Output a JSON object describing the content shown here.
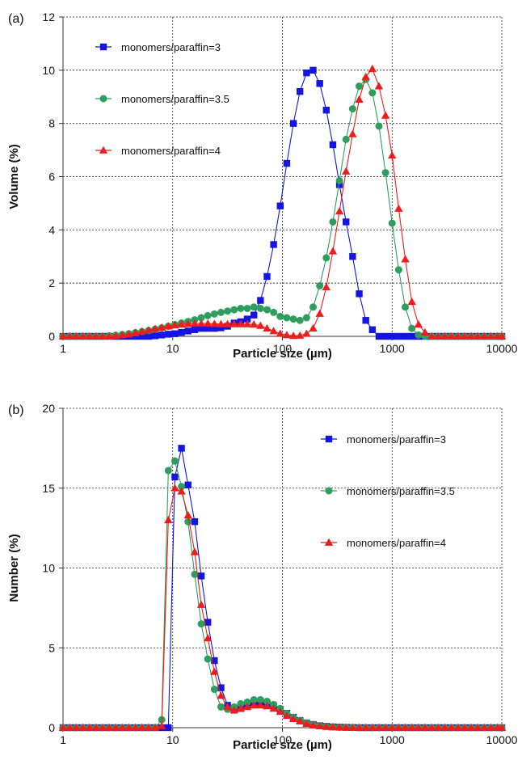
{
  "chart_data": [
    {
      "type": "scatter",
      "panel_label": "(a)",
      "xlabel": "Particle size (µm)",
      "ylabel": "Volume (%)",
      "xscale": "log",
      "xlim": [
        1,
        10000
      ],
      "ylim": [
        0,
        12
      ],
      "xticks": [
        1,
        10,
        100,
        1000,
        10000
      ],
      "xtick_labels": [
        "1",
        "10",
        "100",
        "1000",
        "10000"
      ],
      "yticks": [
        0,
        2,
        4,
        6,
        8,
        10,
        12
      ],
      "ytick_labels": [
        "0",
        "2",
        "4",
        "6",
        "8",
        "10",
        "12"
      ],
      "grid": true,
      "legend_position": "upper-left",
      "series": [
        {
          "name": "monomers/paraffin=3",
          "color": "#1515e0",
          "marker": "square",
          "x": [
            1,
            1.148,
            1.318,
            1.514,
            1.738,
            1.995,
            2.291,
            2.63,
            3.02,
            3.467,
            3.981,
            4.571,
            5.248,
            6.026,
            6.918,
            7.943,
            9.12,
            10.47,
            12.02,
            13.8,
            15.85,
            18.2,
            20.89,
            23.99,
            27.54,
            31.62,
            36.31,
            41.69,
            47.86,
            54.95,
            63.1,
            72.44,
            83.18,
            95.5,
            109.6,
            125.9,
            144.5,
            166,
            190.5,
            218.8,
            251.2,
            288.4,
            331.1,
            380.2,
            436.5,
            501.2,
            575.4,
            660.7,
            758.6,
            871,
            1000,
            1148,
            1318,
            1514,
            1738,
            1995,
            2291,
            2630,
            3020,
            3467,
            3981,
            4571,
            5248,
            6026,
            6918,
            7943,
            9120,
            10000
          ],
          "y": [
            0,
            0,
            0,
            0,
            0,
            0,
            0,
            0,
            0,
            0,
            0,
            0,
            0,
            0,
            0.02,
            0.05,
            0.08,
            0.1,
            0.15,
            0.2,
            0.25,
            0.3,
            0.3,
            0.3,
            0.32,
            0.38,
            0.5,
            0.55,
            0.65,
            0.8,
            1.35,
            2.25,
            3.45,
            4.9,
            6.5,
            8,
            9.2,
            9.9,
            10,
            9.5,
            8.5,
            7.2,
            5.7,
            4.3,
            3,
            1.6,
            0.6,
            0.25,
            0,
            0,
            0,
            0,
            0,
            0,
            0,
            0,
            0,
            0,
            0,
            0,
            0,
            0,
            0,
            0,
            0,
            0,
            0,
            0
          ]
        },
        {
          "name": "monomers/paraffin=3.5",
          "color": "#2e9e5e",
          "marker": "circle",
          "x": [
            1,
            1.148,
            1.318,
            1.514,
            1.738,
            1.995,
            2.291,
            2.63,
            3.02,
            3.467,
            3.981,
            4.571,
            5.248,
            6.026,
            6.918,
            7.943,
            9.12,
            10.47,
            12.02,
            13.8,
            15.85,
            18.2,
            20.89,
            23.99,
            27.54,
            31.62,
            36.31,
            41.69,
            47.86,
            54.95,
            63.1,
            72.44,
            83.18,
            95.5,
            109.6,
            125.9,
            144.5,
            166,
            190.5,
            218.8,
            251.2,
            288.4,
            331.1,
            380.2,
            436.5,
            501.2,
            575.4,
            660.7,
            758.6,
            871,
            1000,
            1148,
            1318,
            1514,
            1738,
            1995,
            2291,
            2630,
            3020,
            3467,
            3981,
            4571,
            5248,
            6026,
            6918,
            7943,
            9120,
            10000
          ],
          "y": [
            0,
            0,
            0,
            0,
            0,
            0,
            0,
            0.02,
            0.04,
            0.07,
            0.1,
            0.14,
            0.18,
            0.22,
            0.27,
            0.32,
            0.38,
            0.44,
            0.5,
            0.56,
            0.62,
            0.7,
            0.78,
            0.84,
            0.9,
            0.95,
            1,
            1.05,
            1.05,
            1.1,
            1.05,
            1,
            0.9,
            0.75,
            0.7,
            0.65,
            0.6,
            0.7,
            1.1,
            1.9,
            2.95,
            4.3,
            5.85,
            7.4,
            8.55,
            9.4,
            9.65,
            9.15,
            7.9,
            6.15,
            4.25,
            2.5,
            1.1,
            0.3,
            0.05,
            0,
            0,
            0,
            0,
            0,
            0,
            0,
            0,
            0,
            0,
            0,
            0,
            0
          ]
        },
        {
          "name": "monomers/paraffin=4",
          "color": "#ee1c1c",
          "marker": "triangle",
          "x": [
            1,
            1.148,
            1.318,
            1.514,
            1.738,
            1.995,
            2.291,
            2.63,
            3.02,
            3.467,
            3.981,
            4.571,
            5.248,
            6.026,
            6.918,
            7.943,
            9.12,
            10.47,
            12.02,
            13.8,
            15.85,
            18.2,
            20.89,
            23.99,
            27.54,
            31.62,
            36.31,
            41.69,
            47.86,
            54.95,
            63.1,
            72.44,
            83.18,
            95.5,
            109.6,
            125.9,
            144.5,
            166,
            190.5,
            218.8,
            251.2,
            288.4,
            331.1,
            380.2,
            436.5,
            501.2,
            575.4,
            660.7,
            758.6,
            871,
            1000,
            1148,
            1318,
            1514,
            1738,
            1995,
            2291,
            2630,
            3020,
            3467,
            3981,
            4571,
            5248,
            6026,
            6918,
            7943,
            9120,
            10000
          ],
          "y": [
            0,
            0,
            0,
            0,
            0,
            0,
            0,
            0,
            0.02,
            0.05,
            0.08,
            0.12,
            0.18,
            0.23,
            0.28,
            0.33,
            0.38,
            0.42,
            0.45,
            0.47,
            0.48,
            0.48,
            0.48,
            0.47,
            0.46,
            0.46,
            0.46,
            0.46,
            0.46,
            0.45,
            0.4,
            0.3,
            0.2,
            0.1,
            0.05,
            0.02,
            0.03,
            0.1,
            0.3,
            0.85,
            1.85,
            3.2,
            4.7,
            6.2,
            7.6,
            8.9,
            9.75,
            10.05,
            9.4,
            8.3,
            6.8,
            4.8,
            2.9,
            1.3,
            0.45,
            0.15,
            0,
            0,
            0,
            0,
            0,
            0,
            0,
            0,
            0,
            0,
            0,
            0
          ]
        }
      ]
    },
    {
      "type": "scatter",
      "panel_label": "(b)",
      "xlabel": "Particle size (µm)",
      "ylabel": "Number (%)",
      "xscale": "log",
      "xlim": [
        1,
        10000
      ],
      "ylim": [
        0,
        20
      ],
      "xticks": [
        1,
        10,
        100,
        1000,
        10000
      ],
      "xtick_labels": [
        "1",
        "10",
        "100",
        "1000",
        "10000"
      ],
      "yticks": [
        0,
        5,
        10,
        15,
        20
      ],
      "ytick_labels": [
        "0",
        "5",
        "10",
        "15",
        "20"
      ],
      "grid": true,
      "legend_position": "upper-right",
      "series": [
        {
          "name": "monomers/paraffin=3",
          "color": "#1515e0",
          "marker": "square",
          "x": [
            1,
            1.148,
            1.318,
            1.514,
            1.738,
            1.995,
            2.291,
            2.63,
            3.02,
            3.467,
            3.981,
            4.571,
            5.248,
            6.026,
            6.918,
            7.943,
            9.12,
            10.47,
            12.02,
            13.8,
            15.85,
            18.2,
            20.89,
            23.99,
            27.54,
            31.62,
            36.31,
            41.69,
            47.86,
            54.95,
            63.1,
            72.44,
            83.18,
            95.5,
            109.6,
            125.9,
            144.5,
            166,
            190.5,
            218.8,
            251.2,
            288.4,
            331.1,
            380.2,
            436.5,
            501.2,
            575.4,
            660.7,
            758.6,
            871,
            1000,
            1148,
            1318,
            1514,
            1738,
            1995,
            2291,
            2630,
            3020,
            3467,
            3981,
            4571,
            5248,
            6026,
            6918,
            7943,
            9120,
            10000
          ],
          "y": [
            0,
            0,
            0,
            0,
            0,
            0,
            0,
            0,
            0,
            0,
            0,
            0,
            0,
            0,
            0,
            0,
            0,
            15.7,
            17.5,
            15.2,
            12.9,
            9.5,
            6.6,
            4.2,
            2.5,
            1.4,
            1.1,
            1.2,
            1.35,
            1.5,
            1.55,
            1.5,
            1.35,
            1.15,
            0.9,
            0.65,
            0.45,
            0.3,
            0.2,
            0.12,
            0.08,
            0.05,
            0.03,
            0.02,
            0.01,
            0,
            0,
            0,
            0,
            0,
            0,
            0,
            0,
            0,
            0,
            0,
            0,
            0,
            0,
            0,
            0,
            0,
            0,
            0,
            0,
            0,
            0,
            0
          ]
        },
        {
          "name": "monomers/paraffin=3.5",
          "color": "#2e9e5e",
          "marker": "circle",
          "x": [
            1,
            1.148,
            1.318,
            1.514,
            1.738,
            1.995,
            2.291,
            2.63,
            3.02,
            3.467,
            3.981,
            4.571,
            5.248,
            6.026,
            6.918,
            7.943,
            9.12,
            10.47,
            12.02,
            13.8,
            15.85,
            18.2,
            20.89,
            23.99,
            27.54,
            31.62,
            36.31,
            41.69,
            47.86,
            54.95,
            63.1,
            72.44,
            83.18,
            95.5,
            109.6,
            125.9,
            144.5,
            166,
            190.5,
            218.8,
            251.2,
            288.4,
            331.1,
            380.2,
            436.5,
            501.2,
            575.4,
            660.7,
            758.6,
            871,
            1000,
            1148,
            1318,
            1514,
            1738,
            1995,
            2291,
            2630,
            3020,
            3467,
            3981,
            4571,
            5248,
            6026,
            6918,
            7943,
            9120,
            10000
          ],
          "y": [
            0,
            0,
            0,
            0,
            0,
            0,
            0,
            0,
            0,
            0,
            0,
            0,
            0,
            0,
            0,
            0.5,
            16.1,
            16.7,
            15.1,
            12.9,
            9.6,
            6.5,
            4.3,
            2.4,
            1.3,
            1.15,
            1.3,
            1.5,
            1.6,
            1.75,
            1.75,
            1.65,
            1.45,
            1.2,
            0.9,
            0.65,
            0.45,
            0.3,
            0.2,
            0.12,
            0.08,
            0.05,
            0.03,
            0.02,
            0.01,
            0,
            0,
            0,
            0,
            0,
            0,
            0,
            0,
            0,
            0,
            0,
            0,
            0,
            0,
            0,
            0,
            0,
            0,
            0,
            0,
            0,
            0,
            0
          ]
        },
        {
          "name": "monomers/paraffin=4",
          "color": "#ee1c1c",
          "marker": "triangle",
          "x": [
            1,
            1.148,
            1.318,
            1.514,
            1.738,
            1.995,
            2.291,
            2.63,
            3.02,
            3.467,
            3.981,
            4.571,
            5.248,
            6.026,
            6.918,
            7.943,
            9.12,
            10.47,
            12.02,
            13.8,
            15.85,
            18.2,
            20.89,
            23.99,
            27.54,
            31.62,
            36.31,
            41.69,
            47.86,
            54.95,
            63.1,
            72.44,
            83.18,
            95.5,
            109.6,
            125.9,
            144.5,
            166,
            190.5,
            218.8,
            251.2,
            288.4,
            331.1,
            380.2,
            436.5,
            501.2,
            575.4,
            660.7,
            758.6,
            871,
            1000,
            1148,
            1318,
            1514,
            1738,
            1995,
            2291,
            2630,
            3020,
            3467,
            3981,
            4571,
            5248,
            6026,
            6918,
            7943,
            9120,
            10000
          ],
          "y": [
            0,
            0,
            0,
            0,
            0,
            0,
            0,
            0,
            0,
            0,
            0,
            0,
            0,
            0,
            0,
            0.1,
            13,
            15,
            14.8,
            13.3,
            11,
            7.7,
            5.6,
            3.5,
            2,
            1.3,
            1.1,
            1.2,
            1.3,
            1.4,
            1.4,
            1.35,
            1.2,
            1,
            0.75,
            0.55,
            0.4,
            0.25,
            0.15,
            0.1,
            0.06,
            0.04,
            0.02,
            0.01,
            0,
            0,
            0,
            0,
            0,
            0,
            0,
            0,
            0,
            0,
            0,
            0,
            0,
            0,
            0,
            0,
            0,
            0,
            0,
            0,
            0,
            0,
            0,
            0
          ]
        }
      ]
    }
  ]
}
